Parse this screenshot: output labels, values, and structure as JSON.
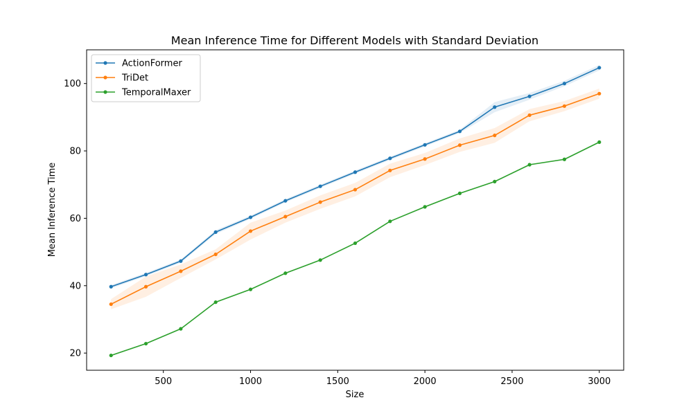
{
  "chart_data": {
    "type": "line",
    "title": "Mean Inference Time for Different Models with Standard Deviation",
    "xlabel": "Size",
    "ylabel": "Mean Inference Time",
    "xlim": [
      60,
      3140
    ],
    "ylim": [
      14.9,
      110
    ],
    "x_ticks": [
      500,
      1000,
      1500,
      2000,
      2500,
      3000
    ],
    "y_ticks": [
      20,
      40,
      60,
      80,
      100
    ],
    "grid": false,
    "legend_position": "top-left",
    "x": [
      200,
      400,
      600,
      800,
      1000,
      1200,
      1400,
      1600,
      1800,
      2000,
      2200,
      2400,
      2600,
      2800,
      3000
    ],
    "series": [
      {
        "name": "ActionFormer",
        "color": "#1f77b4",
        "values": [
          39.7,
          43.3,
          47.3,
          55.9,
          60.3,
          65.2,
          69.5,
          73.7,
          77.8,
          81.8,
          85.8,
          93.0,
          96.2,
          100.0,
          104.7
        ],
        "std": [
          0.5,
          0.5,
          0.5,
          0.6,
          0.5,
          0.5,
          0.5,
          0.5,
          0.5,
          0.5,
          0.5,
          1.5,
          1.0,
          0.8,
          0.8
        ]
      },
      {
        "name": "TriDet",
        "color": "#ff7f0e",
        "values": [
          34.5,
          39.7,
          44.3,
          49.3,
          56.2,
          60.5,
          64.8,
          68.5,
          74.2,
          77.6,
          81.7,
          84.6,
          90.6,
          93.3,
          97.0
        ],
        "std": [
          1.5,
          3.0,
          2.0,
          1.5,
          2.5,
          1.8,
          2.0,
          2.0,
          2.0,
          1.8,
          2.0,
          2.2,
          1.8,
          1.5,
          1.5
        ]
      },
      {
        "name": "TemporalMaxer",
        "color": "#2ca02c",
        "values": [
          19.3,
          22.8,
          27.2,
          35.1,
          38.9,
          43.7,
          47.6,
          52.6,
          59.1,
          63.4,
          67.4,
          70.9,
          75.9,
          77.5,
          82.6
        ],
        "std": [
          0.2,
          0.2,
          0.2,
          0.2,
          0.2,
          0.2,
          0.2,
          0.2,
          0.2,
          0.2,
          0.2,
          0.2,
          0.2,
          0.2,
          0.2
        ]
      }
    ]
  }
}
